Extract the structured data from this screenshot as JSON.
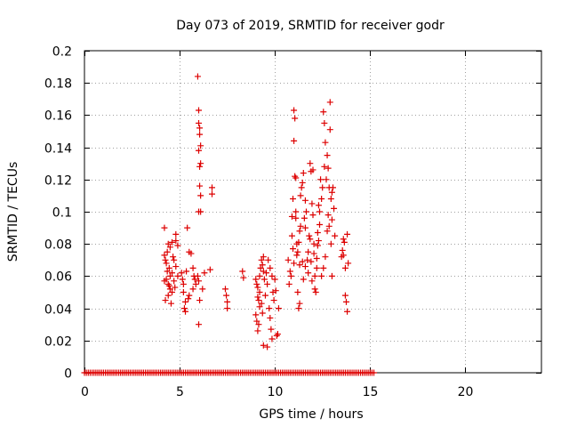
{
  "chart_data": {
    "type": "scatter",
    "title": "Day 073 of 2019, SRMTID for receiver godr",
    "xlabel": "GPS time / hours",
    "ylabel": "SRMTID / TECUs",
    "xlim": [
      0,
      24
    ],
    "ylim": [
      0,
      0.2
    ],
    "x_ticks": [
      0,
      5,
      10,
      15,
      20
    ],
    "x_tick_labels": [
      "0",
      "5",
      "10",
      "15",
      "20"
    ],
    "y_ticks": [
      0,
      0.02,
      0.04,
      0.06,
      0.08,
      0.1,
      0.12,
      0.14,
      0.16,
      0.18,
      0.2
    ],
    "y_tick_labels": [
      "0",
      "0.02",
      "0.04",
      "0.06",
      "0.08",
      "0.1",
      "0.12",
      "0.14",
      "0.16",
      "0.18",
      "0.2"
    ],
    "grid": true,
    "marker": "+",
    "series": [
      {
        "name": "SRMTID",
        "color": "#dd0000",
        "baseline_range_hours": [
          0,
          15.2
        ],
        "baseline_step_hours": 0.1,
        "points": [
          [
            4.2,
            0.09
          ],
          [
            4.2,
            0.073
          ],
          [
            4.25,
            0.07
          ],
          [
            4.3,
            0.068
          ],
          [
            4.35,
            0.075
          ],
          [
            4.4,
            0.08
          ],
          [
            4.45,
            0.065
          ],
          [
            4.5,
            0.06
          ],
          [
            4.3,
            0.058
          ],
          [
            4.4,
            0.055
          ],
          [
            4.5,
            0.052
          ],
          [
            4.6,
            0.05
          ],
          [
            4.6,
            0.062
          ],
          [
            4.7,
            0.057
          ],
          [
            4.7,
            0.07
          ],
          [
            4.8,
            0.082
          ],
          [
            4.8,
            0.086
          ],
          [
            4.9,
            0.079
          ],
          [
            4.9,
            0.06
          ],
          [
            4.25,
            0.045
          ],
          [
            4.4,
            0.048
          ],
          [
            4.55,
            0.043
          ],
          [
            4.65,
            0.072
          ],
          [
            4.35,
            0.063
          ],
          [
            4.8,
            0.066
          ],
          [
            4.75,
            0.053
          ],
          [
            4.5,
            0.078
          ],
          [
            4.6,
            0.081
          ],
          [
            4.2,
            0.057
          ],
          [
            4.45,
            0.054
          ],
          [
            5.1,
            0.062
          ],
          [
            5.15,
            0.058
          ],
          [
            5.2,
            0.055
          ],
          [
            5.25,
            0.04
          ],
          [
            5.3,
            0.038
          ],
          [
            5.3,
            0.044
          ],
          [
            5.35,
            0.063
          ],
          [
            5.4,
            0.09
          ],
          [
            5.45,
            0.046
          ],
          [
            5.5,
            0.075
          ],
          [
            5.6,
            0.074
          ],
          [
            5.7,
            0.065
          ],
          [
            5.75,
            0.06
          ],
          [
            5.8,
            0.058
          ],
          [
            5.85,
            0.055
          ],
          [
            5.2,
            0.05
          ],
          [
            5.5,
            0.048
          ],
          [
            5.7,
            0.052
          ],
          [
            5.95,
            0.184
          ],
          [
            6.0,
            0.163
          ],
          [
            6.0,
            0.155
          ],
          [
            6.05,
            0.152
          ],
          [
            6.05,
            0.148
          ],
          [
            6.1,
            0.141
          ],
          [
            6.1,
            0.13
          ],
          [
            6.05,
            0.128
          ],
          [
            6.0,
            0.138
          ],
          [
            6.05,
            0.116
          ],
          [
            6.1,
            0.11
          ],
          [
            6.1,
            0.1
          ],
          [
            6.0,
            0.1
          ],
          [
            5.95,
            0.06
          ],
          [
            6.0,
            0.057
          ],
          [
            6.05,
            0.045
          ],
          [
            6.0,
            0.03
          ],
          [
            6.2,
            0.052
          ],
          [
            6.3,
            0.062
          ],
          [
            6.7,
            0.115
          ],
          [
            6.7,
            0.111
          ],
          [
            6.6,
            0.064
          ],
          [
            7.4,
            0.052
          ],
          [
            7.45,
            0.048
          ],
          [
            7.5,
            0.044
          ],
          [
            7.5,
            0.04
          ],
          [
            8.3,
            0.063
          ],
          [
            8.35,
            0.059
          ],
          [
            9.4,
            0.063
          ],
          [
            9.0,
            0.058
          ],
          [
            9.05,
            0.055
          ],
          [
            9.1,
            0.053
          ],
          [
            9.1,
            0.047
          ],
          [
            9.15,
            0.045
          ],
          [
            9.2,
            0.05
          ],
          [
            9.2,
            0.06
          ],
          [
            9.25,
            0.065
          ],
          [
            9.3,
            0.07
          ],
          [
            9.35,
            0.067
          ],
          [
            9.4,
            0.072
          ],
          [
            9.45,
            0.058
          ],
          [
            9.0,
            0.036
          ],
          [
            9.05,
            0.032
          ],
          [
            9.1,
            0.026
          ],
          [
            9.15,
            0.03
          ],
          [
            9.2,
            0.041
          ],
          [
            9.3,
            0.043
          ],
          [
            9.35,
            0.037
          ],
          [
            9.4,
            0.017
          ],
          [
            9.6,
            0.016
          ],
          [
            9.6,
            0.055
          ],
          [
            9.7,
            0.04
          ],
          [
            9.75,
            0.034
          ],
          [
            9.8,
            0.027
          ],
          [
            9.85,
            0.06
          ],
          [
            9.9,
            0.05
          ],
          [
            9.95,
            0.045
          ],
          [
            10.0,
            0.058
          ],
          [
            10.05,
            0.051
          ],
          [
            10.1,
            0.023
          ],
          [
            10.15,
            0.024
          ],
          [
            10.2,
            0.04
          ],
          [
            9.5,
            0.048
          ],
          [
            9.55,
            0.062
          ],
          [
            9.65,
            0.07
          ],
          [
            9.75,
            0.065
          ],
          [
            9.85,
            0.021
          ],
          [
            10.7,
            0.07
          ],
          [
            10.75,
            0.055
          ],
          [
            10.8,
            0.063
          ],
          [
            10.85,
            0.06
          ],
          [
            10.9,
            0.085
          ],
          [
            10.95,
            0.108
          ],
          [
            11.0,
            0.144
          ],
          [
            11.0,
            0.163
          ],
          [
            11.05,
            0.158
          ],
          [
            11.05,
            0.122
          ],
          [
            11.1,
            0.1
          ],
          [
            11.1,
            0.096
          ],
          [
            11.15,
            0.08
          ],
          [
            11.2,
            0.075
          ],
          [
            11.2,
            0.05
          ],
          [
            11.25,
            0.04
          ],
          [
            11.3,
            0.043
          ],
          [
            11.3,
            0.088
          ],
          [
            11.35,
            0.11
          ],
          [
            11.4,
            0.115
          ],
          [
            11.45,
            0.118
          ],
          [
            11.5,
            0.124
          ],
          [
            11.55,
            0.096
          ],
          [
            11.6,
            0.09
          ],
          [
            11.65,
            0.1
          ],
          [
            11.7,
            0.07
          ],
          [
            11.75,
            0.075
          ],
          [
            11.8,
            0.085
          ],
          [
            11.85,
            0.13
          ],
          [
            11.9,
            0.125
          ],
          [
            11.95,
            0.105
          ],
          [
            12.0,
            0.098
          ],
          [
            12.05,
            0.08
          ],
          [
            12.1,
            0.06
          ],
          [
            12.1,
            0.052
          ],
          [
            12.15,
            0.05
          ],
          [
            12.2,
            0.065
          ],
          [
            12.25,
            0.079
          ],
          [
            12.3,
            0.082
          ],
          [
            12.35,
            0.1
          ],
          [
            12.4,
            0.12
          ],
          [
            12.45,
            0.108
          ],
          [
            12.5,
            0.115
          ],
          [
            12.55,
            0.162
          ],
          [
            12.6,
            0.155
          ],
          [
            12.65,
            0.143
          ],
          [
            12.7,
            0.12
          ],
          [
            12.75,
            0.135
          ],
          [
            12.8,
            0.127
          ],
          [
            12.85,
            0.115
          ],
          [
            12.9,
            0.168
          ],
          [
            12.9,
            0.151
          ],
          [
            12.95,
            0.108
          ],
          [
            13.0,
            0.112
          ],
          [
            13.0,
            0.095
          ],
          [
            13.05,
            0.115
          ],
          [
            13.1,
            0.102
          ],
          [
            13.15,
            0.085
          ],
          [
            13.0,
            0.06
          ],
          [
            12.95,
            0.08
          ],
          [
            12.85,
            0.091
          ],
          [
            12.75,
            0.088
          ],
          [
            12.65,
            0.072
          ],
          [
            12.55,
            0.065
          ],
          [
            12.45,
            0.06
          ],
          [
            12.35,
            0.092
          ],
          [
            11.0,
            0.068
          ],
          [
            11.15,
            0.073
          ],
          [
            11.3,
            0.067
          ],
          [
            11.45,
            0.069
          ],
          [
            11.6,
            0.066
          ],
          [
            11.75,
            0.062
          ],
          [
            11.9,
            0.069
          ],
          [
            12.05,
            0.074
          ],
          [
            12.2,
            0.071
          ],
          [
            10.9,
            0.097
          ],
          [
            11.1,
            0.121
          ],
          [
            11.6,
            0.107
          ],
          [
            12.0,
            0.126
          ],
          [
            12.3,
            0.104
          ],
          [
            12.6,
            0.128
          ],
          [
            12.8,
            0.098
          ],
          [
            11.35,
            0.091
          ],
          [
            11.85,
            0.083
          ],
          [
            12.25,
            0.087
          ],
          [
            11.5,
            0.058
          ],
          [
            11.95,
            0.057
          ],
          [
            10.95,
            0.077
          ],
          [
            11.25,
            0.081
          ],
          [
            13.5,
            0.072
          ],
          [
            13.55,
            0.076
          ],
          [
            13.6,
            0.083
          ],
          [
            13.65,
            0.081
          ],
          [
            13.7,
            0.065
          ],
          [
            13.7,
            0.048
          ],
          [
            13.75,
            0.044
          ],
          [
            13.8,
            0.038
          ],
          [
            13.8,
            0.086
          ],
          [
            13.85,
            0.068
          ],
          [
            13.6,
            0.073
          ]
        ]
      }
    ]
  }
}
